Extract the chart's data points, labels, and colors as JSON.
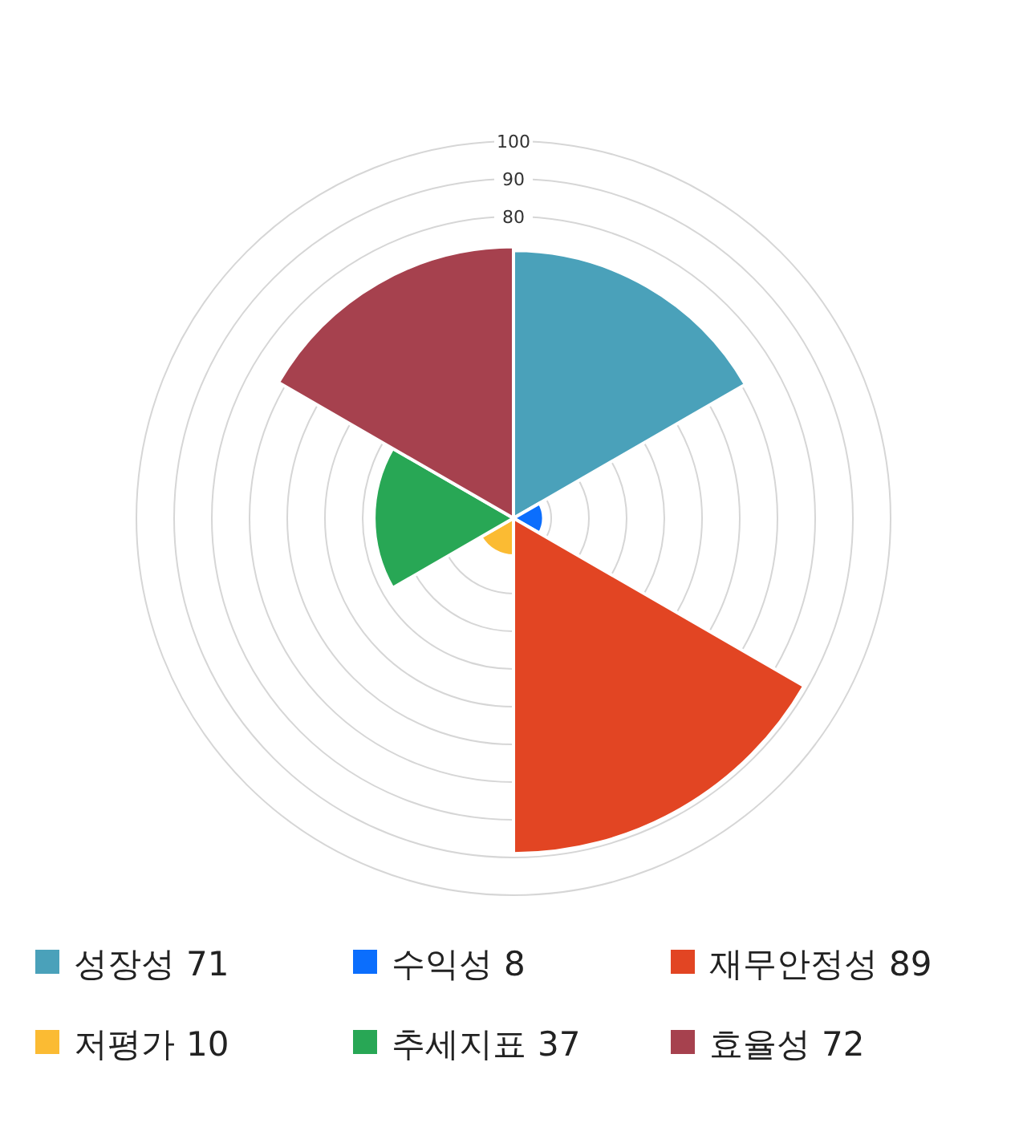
{
  "chart_data": {
    "type": "other",
    "categories": [
      "성장성",
      "수익성",
      "재무안정성",
      "저평가",
      "추세지표",
      "효율성"
    ],
    "values": [
      71,
      8,
      89,
      10,
      37,
      72
    ],
    "value_labels": [
      "71",
      "8",
      "89",
      "10",
      "37",
      "72"
    ],
    "colors": [
      "#4aa1ba",
      "#0b6efd",
      "#e24523",
      "#fbbb33",
      "#28a755",
      "#a6414e"
    ],
    "annotations": [
      "100",
      "90",
      "80"
    ]
  }
}
